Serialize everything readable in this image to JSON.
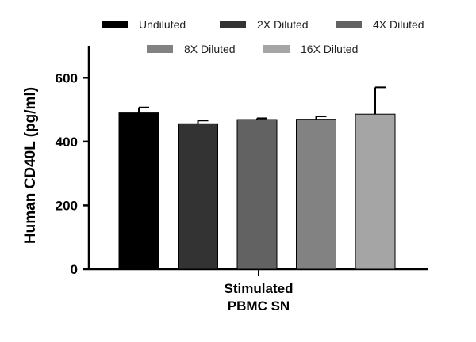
{
  "chart_data": {
    "type": "bar",
    "ylabel": "Human CD40L (pg/ml)",
    "xlabel": "",
    "category_label_lines": [
      "Stimulated",
      "PBMC SN"
    ],
    "ylim": [
      0,
      700
    ],
    "yticks": [
      0,
      200,
      400,
      600
    ],
    "grid": false,
    "legend_position": "top",
    "series": [
      {
        "name": "Undiluted",
        "value": 490,
        "error": 17,
        "color": "#000000"
      },
      {
        "name": "2X Diluted",
        "value": 456,
        "error": 10,
        "color": "#333333"
      },
      {
        "name": "4X Diluted",
        "value": 469,
        "error": 4,
        "color": "#626262"
      },
      {
        "name": "8X Diluted",
        "value": 470,
        "error": 9,
        "color": "#828282"
      },
      {
        "name": "16X Diluted",
        "value": 486,
        "error": 84,
        "color": "#a5a5a5"
      }
    ]
  }
}
